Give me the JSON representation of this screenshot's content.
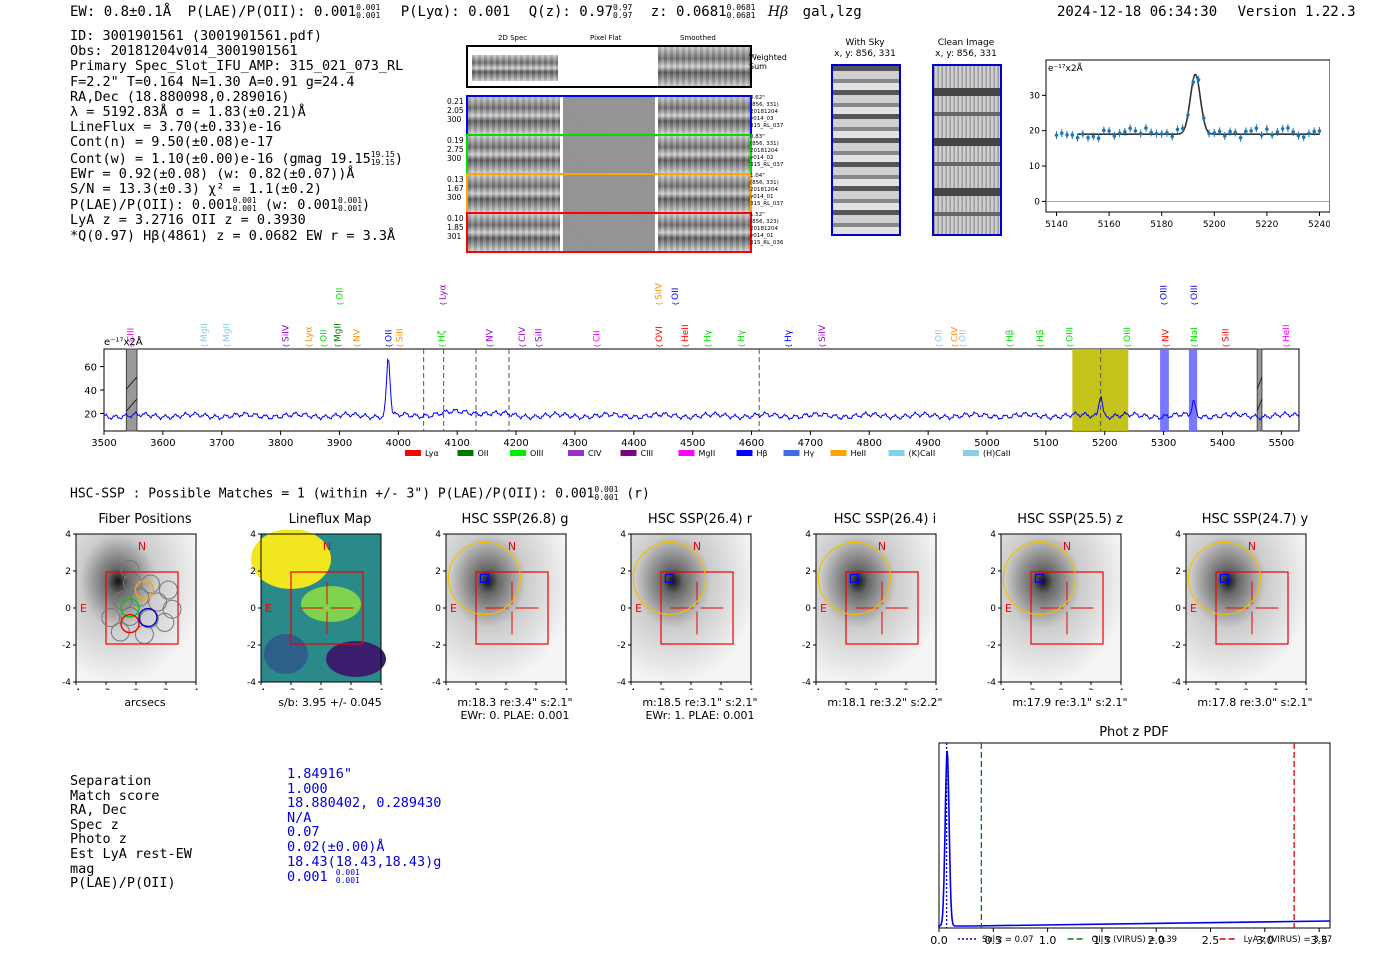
{
  "header": {
    "ew": "EW: 0.8±0.1Å",
    "plae_prefix": "P(LAE)/P(OII): 0.001",
    "plae_sup": "0.001",
    "plae_sub": "0.001",
    "plya": "P(Lyα): 0.001",
    "qz_prefix": "Q(z): 0.97",
    "qz_sup": "0.97",
    "qz_sub": "0.97",
    "z_prefix": "z: 0.0681",
    "z_sup": "0.0681",
    "z_sub": "0.0681",
    "line_id": "Hβ",
    "tags": "gal,lzg",
    "datetime": "2024-12-18 06:34:30",
    "version": "Version 1.22.3"
  },
  "info": {
    "lines": [
      "ID: 3001901561 (3001901561.pdf)",
      "Obs: 20181204v014_3001901561",
      "Primary Spec_Slot_IFU_AMP: 315_021_073_RL",
      "F=2.2\"  T=0.164  N=1.30  A=0.91  g=24.4",
      "RA,Dec (18.880098,0.289016)",
      "λ = 5192.83Å  σ = 1.83(±0.21)Å",
      "LineFlux = 3.70(±0.33)e-16",
      "Cont(n) = 9.50(±0.08)e-17",
      "Cont(w) = 1.10(±0.00)e-16 (gmag 19.15",
      "EWr = 0.92(±0.08) (w: 0.82(±0.07))Å",
      "S/N = 13.3(±0.3)  χ² = 1.1(±0.2)",
      "P(LAE)/P(OII): 0.001",
      "LyA z = 3.2716  OII z = 0.3930",
      "*Q(0.97) Hβ(4861) z = 0.0682  EW r = 3.3Å"
    ],
    "gmag_sup": "19.15",
    "gmag_sub": "19.15",
    "plae_mid": "(w: 0.001",
    "plae_sup1": "0.001",
    "plae_sub1": "0.001",
    "plae_sup2": "0.001",
    "plae_sub2": "0.001",
    "plae_close": ")"
  },
  "spec2d": {
    "col_titles": [
      "2D Spec",
      "Pixel Flat",
      "Smoothed"
    ],
    "weighted_label_1": "Weighted",
    "weighted_label_2": "Sum",
    "rows": [
      {
        "color": "#0000ff",
        "left": [
          "0.21",
          "2.05",
          "300"
        ],
        "right": [
          "0.62\"",
          "(856, 331)",
          "20181204",
          "v014_03",
          "315_RL_037"
        ]
      },
      {
        "color": "#00dd00",
        "left": [
          "0.19",
          "2.75",
          "300"
        ],
        "right": [
          "0.83\"",
          "(856, 331)",
          "20181204",
          "v014_02",
          "315_RL_037"
        ]
      },
      {
        "color": "#ffa500",
        "left": [
          "0.13",
          "1.67",
          "300"
        ],
        "right": [
          "1.04\"",
          "(856, 331)",
          "20181204",
          "v014_01",
          "315_RL_037"
        ]
      },
      {
        "color": "#ff0000",
        "left": [
          "0.10",
          "1.85",
          "301"
        ],
        "right": [
          "1.52\"",
          "(856, 323)",
          "20181204",
          "v014_01",
          "315_RL_036"
        ]
      }
    ]
  },
  "cutouts": {
    "sky_title": "With Sky",
    "sky_sub": "x, y: 856, 331",
    "clean_title": "Clean Image",
    "clean_sub": "x, y: 856, 331"
  },
  "zoom_chart": {
    "ylabel": "e⁻¹⁷x2Å",
    "x_ticks": [
      "5140",
      "5160",
      "5180",
      "5200",
      "5220",
      "5240"
    ],
    "y_ticks": [
      "0",
      "10",
      "20",
      "30"
    ]
  },
  "chart_data": {
    "type": "line",
    "title": "",
    "ylabel": "e⁻¹⁷x2Å",
    "xlim": [
      3500,
      5530
    ],
    "ylim": [
      5,
      75
    ],
    "x_ticks": [
      3500,
      3600,
      3700,
      3800,
      3900,
      4000,
      4100,
      4200,
      4300,
      4400,
      4500,
      4600,
      4700,
      4800,
      4900,
      5000,
      5100,
      5200,
      5300,
      5400,
      5500
    ],
    "y_ticks": [
      20,
      40,
      60
    ],
    "continuum": 18,
    "emission_peaks": [
      {
        "x": 3983,
        "height": 68
      },
      {
        "x": 5193,
        "height": 37
      },
      {
        "x": 5351,
        "height": 30
      }
    ],
    "dashed_lines": [
      4043,
      4077,
      4132,
      4188,
      4613,
      5193
    ],
    "highlight_regions": [
      {
        "x0": 5145,
        "x1": 5240,
        "color": "#bdbd00"
      },
      {
        "x0": 5294,
        "x1": 5309,
        "color": "#6a6aff"
      },
      {
        "x0": 5343,
        "x1": 5357,
        "color": "#6a6aff"
      }
    ],
    "hatched_regions": [
      {
        "x0": 3538,
        "x1": 3556
      },
      {
        "x0": 5459,
        "x1": 5467
      }
    ],
    "line_labels": [
      {
        "x": 3545,
        "text": "CIII",
        "color": "#ff00ff",
        "row": 1
      },
      {
        "x": 3670,
        "text": "MgII",
        "color": "#87ceeb",
        "row": 1
      },
      {
        "x": 3708,
        "text": "MgII",
        "color": "#87ceeb",
        "row": 1
      },
      {
        "x": 3808,
        "text": "SiIV",
        "color": "#9400d3",
        "row": 1
      },
      {
        "x": 3847,
        "text": "Lyα",
        "color": "#ff8c00",
        "row": 1
      },
      {
        "x": 3873,
        "text": "OII",
        "color": "#00dd00",
        "row": 1
      },
      {
        "x": 3897,
        "text": "MgII",
        "color": "#007700",
        "row": 1
      },
      {
        "x": 3929,
        "text": "NV",
        "color": "#ff8c00",
        "row": 1
      },
      {
        "x": 3983,
        "text": "OII",
        "color": "#0000ff",
        "row": 1
      },
      {
        "x": 4002,
        "text": "SiII",
        "color": "#ff8c00",
        "row": 1
      },
      {
        "x": 4073,
        "text": "Hζ",
        "color": "#00dd00",
        "row": 1
      },
      {
        "x": 4155,
        "text": "NV",
        "color": "#9400d3",
        "row": 1
      },
      {
        "x": 4210,
        "text": "CIV",
        "color": "#9400d3",
        "row": 1
      },
      {
        "x": 4238,
        "text": "SiII",
        "color": "#9400d3",
        "row": 1
      },
      {
        "x": 4337,
        "text": "CII",
        "color": "#ff00ff",
        "row": 1
      },
      {
        "x": 4443,
        "text": "OVI",
        "color": "#ff0000",
        "row": 1
      },
      {
        "x": 4487,
        "text": "HeII",
        "color": "#ff0000",
        "row": 1
      },
      {
        "x": 4525,
        "text": "Hγ",
        "color": "#00dd00",
        "row": 1
      },
      {
        "x": 4582,
        "text": "Hγ",
        "color": "#00dd00",
        "row": 1
      },
      {
        "x": 4662,
        "text": "Hγ",
        "color": "#0000ff",
        "row": 1
      },
      {
        "x": 4720,
        "text": "SiIV",
        "color": "#9400d3",
        "row": 1
      },
      {
        "x": 4918,
        "text": "OII",
        "color": "#87ceeb",
        "row": 1
      },
      {
        "x": 4945,
        "text": "CIV",
        "color": "#ff8c00",
        "row": 1
      },
      {
        "x": 4958,
        "text": "OII",
        "color": "#87ceeb",
        "row": 1
      },
      {
        "x": 5038,
        "text": "Hβ",
        "color": "#00dd00",
        "row": 1
      },
      {
        "x": 5090,
        "text": "Hβ",
        "color": "#00dd00",
        "row": 1
      },
      {
        "x": 5140,
        "text": "OIII",
        "color": "#00dd00",
        "row": 1
      },
      {
        "x": 5238,
        "text": "OIII",
        "color": "#00dd00",
        "row": 1
      },
      {
        "x": 5303,
        "text": "NV",
        "color": "#ff0000",
        "row": 1
      },
      {
        "x": 5352,
        "text": "NaI",
        "color": "#00dd00",
        "row": 1
      },
      {
        "x": 5405,
        "text": "SiII",
        "color": "#ff0000",
        "row": 1
      },
      {
        "x": 5508,
        "text": "HeII",
        "color": "#ff00ff",
        "row": 1
      },
      {
        "x": 3900,
        "text": "OII",
        "color": "#00dd00",
        "row": 2
      },
      {
        "x": 4075,
        "text": "Lyα",
        "color": "#9400d3",
        "row": 2
      },
      {
        "x": 4442,
        "text": "SiIV",
        "color": "#ff8c00",
        "row": 2
      },
      {
        "x": 4470,
        "text": "OII",
        "color": "#0000ff",
        "row": 2
      },
      {
        "x": 5300,
        "text": "OIII",
        "color": "#0000ff",
        "row": 2
      },
      {
        "x": 5352,
        "text": "OIII",
        "color": "#0000ff",
        "row": 2
      }
    ],
    "legend": [
      {
        "name": "Lyα",
        "color": "#ff0000"
      },
      {
        "name": "OII",
        "color": "#007700"
      },
      {
        "name": "OIII",
        "color": "#00ee00"
      },
      {
        "name": "CIV",
        "color": "#9932cc"
      },
      {
        "name": "CIII",
        "color": "#800080"
      },
      {
        "name": "MgII",
        "color": "#ff00ff"
      },
      {
        "name": "Hβ",
        "color": "#0000ff"
      },
      {
        "name": "Hγ",
        "color": "#4169e1"
      },
      {
        "name": "HeII",
        "color": "#ffa500"
      },
      {
        "name": "(K)CaII",
        "color": "#87ceeb"
      },
      {
        "name": "(H)CaII",
        "color": "#87ceeb"
      }
    ]
  },
  "hsc": {
    "summary_prefix": "HSC-SSP : Possible Matches = 1 (within +/- 3\")  P(LAE)/P(OII): 0.001",
    "summary_sup": "0.001",
    "summary_sub": "0.001",
    "summary_suffix": "(r)",
    "panels": [
      {
        "title": "Fiber Positions",
        "caption1": "arcsecs",
        "caption2": ""
      },
      {
        "title": "Lineflux Map",
        "caption1": "s/b: 3.95 +/- 0.045",
        "caption2": ""
      },
      {
        "title": "HSC SSP(26.8) g",
        "caption1": "m:18.3  re:3.4\"  s:2.1\"",
        "caption2": "EWr: 0. PLAE: 0.001"
      },
      {
        "title": "HSC SSP(26.4) r",
        "caption1": "m:18.5  re:3.1\"  s:2.1\"",
        "caption2": "EWr: 1. PLAE: 0.001"
      },
      {
        "title": "HSC SSP(26.4) i",
        "caption1": "m:18.1  re:3.2\"  s:2.2\"",
        "caption2": ""
      },
      {
        "title": "HSC SSP(25.5) z",
        "caption1": "m:17.9  re:3.1\"  s:2.1\"",
        "caption2": ""
      },
      {
        "title": "HSC SSP(24.7) y",
        "caption1": "m:17.8  re:3.0\"  s:2.1\"",
        "caption2": ""
      }
    ],
    "axis_ticks": [
      "-4",
      "-2",
      "0",
      "2",
      "4"
    ],
    "label_n": "N",
    "label_e": "E"
  },
  "match": {
    "labels": [
      "Separation",
      "Match score",
      "RA, Dec",
      "Spec z",
      "Photo z",
      "Est LyA rest-EW",
      "mag",
      "P(LAE)/P(OII)"
    ],
    "values": [
      "1.84916\"",
      "1.000",
      "18.880402, 0.289430",
      "N/A",
      "0.07",
      "0.02(±0.00)Å",
      "18.43(18.43,18.43)g",
      "0.001"
    ],
    "plae_sup": "0.001",
    "plae_sub": "0.001"
  },
  "photz": {
    "title": "Phot z PDF",
    "x_ticks": [
      "0.0",
      "0.5",
      "1.0",
      "1.5",
      "2.0",
      "2.5",
      "3.0",
      "3.5"
    ],
    "legend": [
      {
        "label": "Sol z = 0.07",
        "color": "#0000cc"
      },
      {
        "label": "OII z (VIRUS) = 0.39",
        "color": "#008800"
      },
      {
        "label": "LyA z (VIRUS) = 3.27",
        "color": "#dd0000"
      }
    ]
  }
}
